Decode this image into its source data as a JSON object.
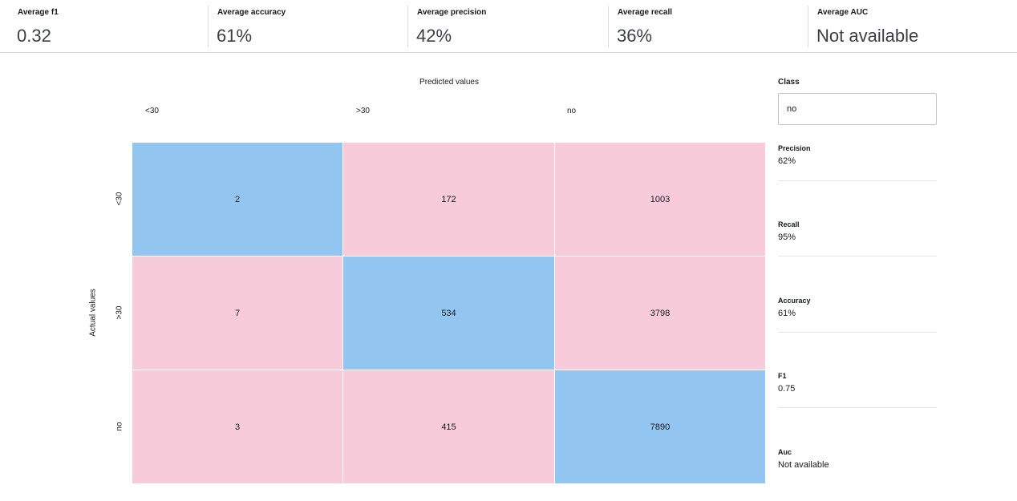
{
  "summary": [
    {
      "label": "Average f1",
      "value": "0.32"
    },
    {
      "label": "Average accuracy",
      "value": "61%"
    },
    {
      "label": "Average precision",
      "value": "42%"
    },
    {
      "label": "Average recall",
      "value": "36%"
    },
    {
      "label": "Average AUC",
      "value": "Not available"
    }
  ],
  "matrix": {
    "predicted_title": "Predicted values",
    "actual_title": "Actual values",
    "columns": [
      "<30",
      ">30",
      "no"
    ],
    "rows": [
      "<30",
      ">30",
      "no"
    ],
    "cells": [
      [
        "2",
        "172",
        "1003"
      ],
      [
        "7",
        "534",
        "3798"
      ],
      [
        "3",
        "415",
        "7890"
      ]
    ],
    "colors": {
      "diagonal": "#92c6f0",
      "off_diagonal": "#f7cbda"
    }
  },
  "class_panel": {
    "label": "Class",
    "selected": "no",
    "metrics": [
      {
        "label": "Precision",
        "value": "62%"
      },
      {
        "label": "Recall",
        "value": "95%"
      },
      {
        "label": "Accuracy",
        "value": "61%"
      },
      {
        "label": "F1",
        "value": "0.75"
      },
      {
        "label": "Auc",
        "value": "Not available"
      }
    ]
  }
}
